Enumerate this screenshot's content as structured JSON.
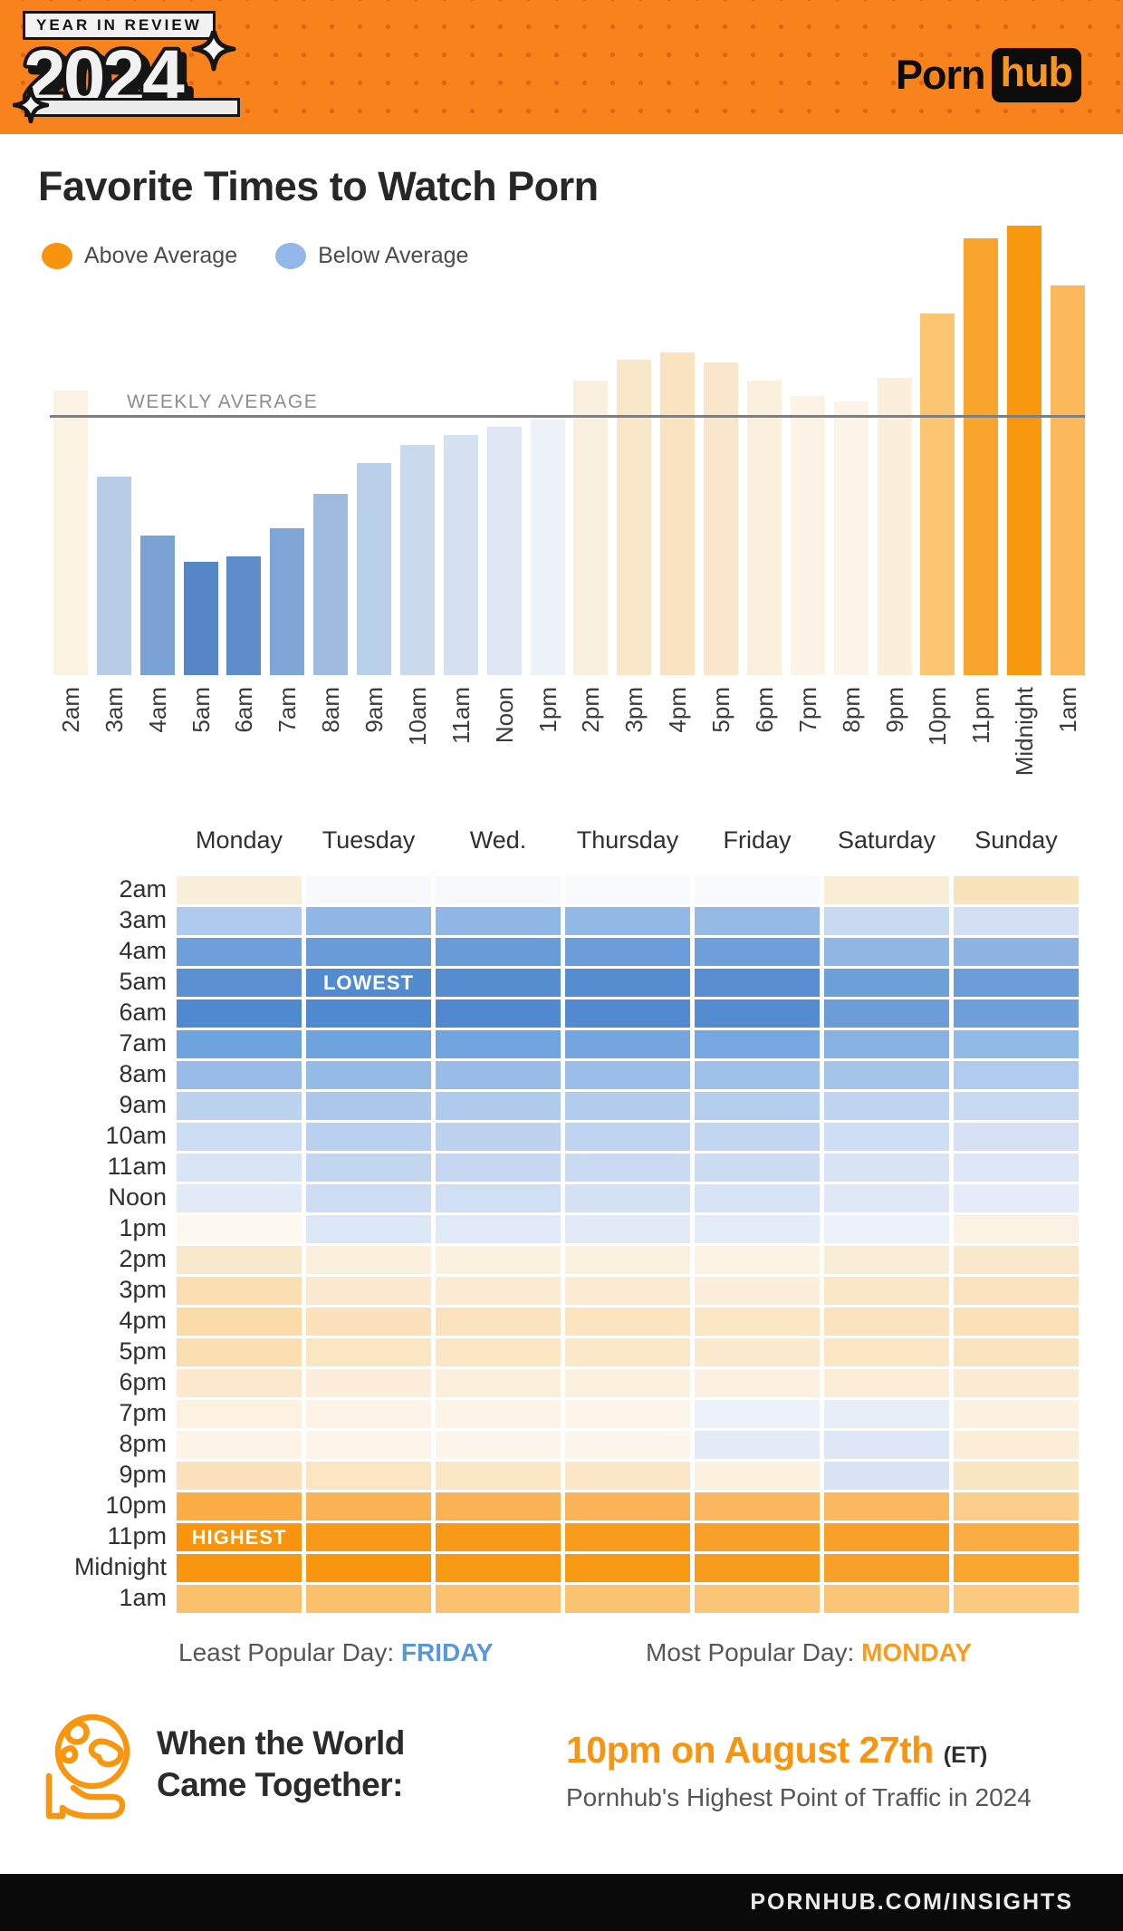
{
  "header": {
    "badge_line1": "YEAR IN REVIEW",
    "badge_year": "2024",
    "logo_porn": "Porn",
    "logo_hub": "hub"
  },
  "title": "Favorite Times to Watch Porn",
  "legend": {
    "above": {
      "label": "Above Average",
      "color": "#F8940E"
    },
    "below": {
      "label": "Below Average",
      "color": "#92B7E8"
    }
  },
  "chart_data": [
    {
      "type": "bar",
      "title": "Favorite Times to Watch Porn",
      "average_line_label": "WEEKLY AVERAGE",
      "unit": "percent of weekly average (weekly average = 100)",
      "categories": [
        "2am",
        "3am",
        "4am",
        "5am",
        "6am",
        "7am",
        "8am",
        "9am",
        "10am",
        "11am",
        "Noon",
        "1pm",
        "2pm",
        "3pm",
        "4pm",
        "5pm",
        "6pm",
        "7pm",
        "8pm",
        "9pm",
        "10pm",
        "11pm",
        "Midnight",
        "1am"
      ],
      "values_pct_of_weekly_average": [
        110,
        77,
        54,
        44,
        46,
        57,
        70,
        82,
        89,
        93,
        96,
        99,
        114,
        122,
        125,
        121,
        114,
        108,
        106,
        115,
        140,
        169,
        174,
        151
      ],
      "bar_colors": [
        "#FAF2E3",
        "#B8CCE8",
        "#7BA2D4",
        "#5585C6",
        "#5E8CC9",
        "#7FA5D6",
        "#9FBCE0",
        "#BACFEA",
        "#CBD9EE",
        "#D5E0F1",
        "#DFE7F4",
        "#EDF1F8",
        "#FAF0DF",
        "#FAE6C8",
        "#FAE3C0",
        "#FAE7CB",
        "#FBF0DE",
        "#FCF3E7",
        "#FCF4E9",
        "#FBEFDC",
        "#FBC572",
        "#F9A42C",
        "#F8980E",
        "#FBB95B"
      ],
      "legend_position": "top-left",
      "grid": false,
      "note": "orange bars = above weekly average, blue bars = below weekly average; gray horizontal line marks the weekly average"
    },
    {
      "type": "heatmap",
      "columns": [
        "Monday",
        "Tuesday",
        "Wed.",
        "Thursday",
        "Friday",
        "Saturday",
        "Sunday"
      ],
      "rows": [
        {
          "label": "2am",
          "cell_colors": [
            "#FAEFDA",
            "#F7F9FC",
            "#F7F9FC",
            "#F8FAFD",
            "#F8FAFD",
            "#FAEDD5",
            "#F8E3BC"
          ]
        },
        {
          "label": "3am",
          "cell_colors": [
            "#AECBEE",
            "#8FB6E4",
            "#8FB6E4",
            "#92B8E5",
            "#95BAE6",
            "#C8DAF2",
            "#D3DFF4"
          ]
        },
        {
          "label": "4am",
          "cell_colors": [
            "#6FA0DB",
            "#699BD9",
            "#699BD9",
            "#6C9DDA",
            "#6FA0DB",
            "#8FB7E4",
            "#8FB4E3"
          ]
        },
        {
          "label": "5am",
          "cell_colors": [
            "#5B90D2",
            "#538BD0",
            "#568DD1",
            "#568DD1",
            "#588ED1",
            "#6D9FD9",
            "#6D9DD8"
          ]
        },
        {
          "label": "6am",
          "cell_colors": [
            "#4F89CF",
            "#4F89CF",
            "#5089CF",
            "#528BD0",
            "#548CD0",
            "#6B9CD8",
            "#6FA0DB"
          ]
        },
        {
          "label": "7am",
          "cell_colors": [
            "#6FA3DE",
            "#6FA3DE",
            "#71A4DE",
            "#74A5DF",
            "#76A7E0",
            "#87B1E2",
            "#92BAE6"
          ]
        },
        {
          "label": "8am",
          "cell_colors": [
            "#98BCE7",
            "#95BAE6",
            "#98BCE7",
            "#9BBEE8",
            "#9EC0E9",
            "#A5C4EA",
            "#B0CBED"
          ]
        },
        {
          "label": "9am",
          "cell_colors": [
            "#BCD3F0",
            "#ABC7EB",
            "#AECAEC",
            "#B1CCED",
            "#B4CEEE",
            "#BED4F0",
            "#C8DAF2"
          ]
        },
        {
          "label": "10am",
          "cell_colors": [
            "#CDDDF3",
            "#B9D0EE",
            "#BCD2EF",
            "#BFD4F0",
            "#C2D6F1",
            "#CEDEF4",
            "#D6E1F5"
          ]
        },
        {
          "label": "11am",
          "cell_colors": [
            "#D9E4F6",
            "#C3D6F0",
            "#C6D8F1",
            "#C9DAF2",
            "#CCDCF3",
            "#D8E3F5",
            "#DEE7F7"
          ]
        },
        {
          "label": "Noon",
          "cell_colors": [
            "#E2EAF8",
            "#CEDDF3",
            "#D1DFF4",
            "#D4E1F5",
            "#D7E3F6",
            "#E0E8F7",
            "#E6ECF9"
          ]
        },
        {
          "label": "1pm",
          "cell_colors": [
            "#FDF8F0",
            "#DCE7F7",
            "#DFE9F8",
            "#E2EAF8",
            "#E5ECF9",
            "#EDF1FA",
            "#FBF2E4"
          ]
        },
        {
          "label": "2pm",
          "cell_colors": [
            "#F8E8CC",
            "#FBF0DC",
            "#FBF1DF",
            "#FBF1DF",
            "#FCF3E4",
            "#FAEDD7",
            "#F9E8CB"
          ]
        },
        {
          "label": "3pm",
          "cell_colors": [
            "#FBDFB2",
            "#FBEAD0",
            "#FBEBD2",
            "#FBEBD2",
            "#FCEEDA",
            "#FAE7C8",
            "#FAE3BE"
          ]
        },
        {
          "label": "4pm",
          "cell_colors": [
            "#FBDCA8",
            "#FBE2BA",
            "#FBE3BD",
            "#FBE4BF",
            "#FBE6C4",
            "#FAE3BE",
            "#FAE1B8"
          ]
        },
        {
          "label": "5pm",
          "cell_colors": [
            "#FBDFB2",
            "#FBE6C4",
            "#FBE7C6",
            "#FBE8C9",
            "#FBEACD",
            "#FAE6C4",
            "#FAE4C0"
          ]
        },
        {
          "label": "6pm",
          "cell_colors": [
            "#FCE9CD",
            "#FCEEDA",
            "#FCEFDC",
            "#FCF0DE",
            "#FCF1E1",
            "#FBEDD6",
            "#FBEBD2"
          ]
        },
        {
          "label": "7pm",
          "cell_colors": [
            "#FDF1E0",
            "#FDF3E6",
            "#FDF4E8",
            "#FDF5EA",
            "#EDF1FA",
            "#E8EEF8",
            "#FCF0DE"
          ]
        },
        {
          "label": "8pm",
          "cell_colors": [
            "#FDF3E6",
            "#FDF5EA",
            "#FDF6EC",
            "#FDF6EC",
            "#E4EBF7",
            "#DDE7F5",
            "#FBEDD6"
          ]
        },
        {
          "label": "9pm",
          "cell_colors": [
            "#FBE2BC",
            "#FBE5C3",
            "#FBE6C5",
            "#FBE7C7",
            "#FCF0DE",
            "#D8E3F4",
            "#FAE5C2"
          ]
        },
        {
          "label": "10pm",
          "cell_colors": [
            "#FBAE45",
            "#FBB254",
            "#FBB254",
            "#FBB357",
            "#FBB65E",
            "#FBB85F",
            "#FCCE8C"
          ]
        },
        {
          "label": "11pm",
          "cell_colors": [
            "#F8940D",
            "#F8991A",
            "#F8991A",
            "#F89C1E",
            "#F9A02A",
            "#F9A02A",
            "#FBAD43"
          ]
        },
        {
          "label": "Midnight",
          "cell_colors": [
            "#F8970F",
            "#F8970F",
            "#F89914",
            "#F89914",
            "#F89C1E",
            "#F9A02A",
            "#FAA52E"
          ]
        },
        {
          "label": "1am",
          "cell_colors": [
            "#FBC06C",
            "#FBC06C",
            "#FBC16F",
            "#FBC271",
            "#FBC577",
            "#FBC577",
            "#FBCA80"
          ]
        }
      ],
      "annotations": [
        {
          "text": "LOWEST",
          "row": "5am",
          "column": "Tuesday"
        },
        {
          "text": "HIGHEST",
          "row": "11pm",
          "column": "Monday"
        }
      ],
      "note": "color encodes traffic vs weekly average: orange = above average, blue = below average; intensity = magnitude"
    }
  ],
  "popular": {
    "least_label": "Least Popular Day:",
    "least_value": "FRIDAY",
    "least_color": "#5799D6",
    "most_label": "Most Popular Day:",
    "most_value": "MONDAY",
    "most_color": "#F99C1C"
  },
  "world": {
    "heading_line1": "When the World",
    "heading_line2": "Came Together:",
    "highlight": "10pm on August 27th",
    "suffix": "(ET)",
    "subtext": "Pornhub's Highest Point of Traffic in 2024"
  },
  "footer": {
    "link": "PORNHUB.COM/INSIGHTS"
  }
}
